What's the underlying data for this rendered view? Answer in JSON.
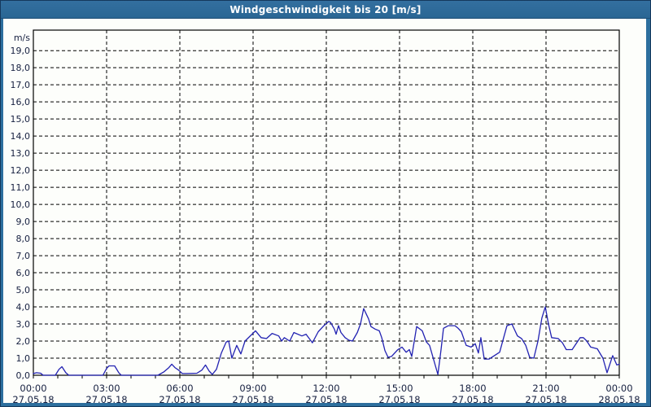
{
  "window": {
    "title": "Windgeschwindigkeit bis 20 [m/s]"
  },
  "colors": {
    "frame": "#2d6f9e",
    "frame_border": "#15385c",
    "chart_bg": "#fdfefb",
    "grid": "#000000",
    "axis": "#000000",
    "line": "#2222b2",
    "text": "#162040",
    "title_text": "#ffffff"
  },
  "chart_data": {
    "type": "line",
    "title": "Windgeschwindigkeit bis 20 [m/s]",
    "ylabel": "m/s",
    "xlabel": "",
    "ylim": [
      0,
      20.2
    ],
    "xlim_hours": [
      0,
      24
    ],
    "grid": "dashed",
    "legend": "none",
    "minor_x_tick_every_hours": 1,
    "y_ticks": [
      {
        "v": 0,
        "label": "0,0"
      },
      {
        "v": 1,
        "label": "1,0"
      },
      {
        "v": 2,
        "label": "2,0"
      },
      {
        "v": 3,
        "label": "3,0"
      },
      {
        "v": 4,
        "label": "4,0"
      },
      {
        "v": 5,
        "label": "5,0"
      },
      {
        "v": 6,
        "label": "6,0"
      },
      {
        "v": 7,
        "label": "7,0"
      },
      {
        "v": 8,
        "label": "8,0"
      },
      {
        "v": 9,
        "label": "9,0"
      },
      {
        "v": 10,
        "label": "10,0"
      },
      {
        "v": 11,
        "label": "11,0"
      },
      {
        "v": 12,
        "label": "12,0"
      },
      {
        "v": 13,
        "label": "13,0"
      },
      {
        "v": 14,
        "label": "14,0"
      },
      {
        "v": 15,
        "label": "15,0"
      },
      {
        "v": 16,
        "label": "16,0"
      },
      {
        "v": 17,
        "label": "17,0"
      },
      {
        "v": 18,
        "label": "18,0"
      },
      {
        "v": 19,
        "label": "19,0"
      }
    ],
    "x_ticks": [
      {
        "h": 0,
        "time": "00:00",
        "date": "27.05.18"
      },
      {
        "h": 3,
        "time": "03:00",
        "date": "27.05.18"
      },
      {
        "h": 6,
        "time": "06:00",
        "date": "27.05.18"
      },
      {
        "h": 9,
        "time": "09:00",
        "date": "27.05.18"
      },
      {
        "h": 12,
        "time": "12:00",
        "date": "27.05.18"
      },
      {
        "h": 15,
        "time": "15:00",
        "date": "27.05.18"
      },
      {
        "h": 18,
        "time": "18:00",
        "date": "27.05.18"
      },
      {
        "h": 21,
        "time": "21:00",
        "date": "27.05.18"
      },
      {
        "h": 24,
        "time": "00:00",
        "date": "28.05.18"
      }
    ],
    "series": [
      {
        "color": "#2222b2",
        "points": [
          [
            0,
            0.1
          ],
          [
            0.13,
            0.15
          ],
          [
            0.3,
            0.12
          ],
          [
            0.4,
            0
          ],
          [
            0.9,
            0
          ],
          [
            1.05,
            0.35
          ],
          [
            1.17,
            0.5
          ],
          [
            1.33,
            0.15
          ],
          [
            1.45,
            0
          ],
          [
            2.85,
            0
          ],
          [
            3,
            0.4
          ],
          [
            3.1,
            0.55
          ],
          [
            3.33,
            0.55
          ],
          [
            3.5,
            0.15
          ],
          [
            3.6,
            0
          ],
          [
            5.1,
            0
          ],
          [
            5.35,
            0.2
          ],
          [
            5.55,
            0.45
          ],
          [
            5.67,
            0.65
          ],
          [
            5.8,
            0.45
          ],
          [
            5.95,
            0.3
          ],
          [
            6.1,
            0.1
          ],
          [
            6.25,
            0.1
          ],
          [
            6.7,
            0.12
          ],
          [
            6.9,
            0.3
          ],
          [
            7.05,
            0.6
          ],
          [
            7.2,
            0.25
          ],
          [
            7.33,
            0.05
          ],
          [
            7.5,
            0.35
          ],
          [
            7.7,
            1.3
          ],
          [
            7.9,
            1.95
          ],
          [
            8,
            2
          ],
          [
            8.13,
            1
          ],
          [
            8.33,
            1.75
          ],
          [
            8.5,
            1.25
          ],
          [
            8.67,
            2
          ],
          [
            9.1,
            2.6
          ],
          [
            9.33,
            2.2
          ],
          [
            9.55,
            2.15
          ],
          [
            9.78,
            2.45
          ],
          [
            10.05,
            2.3
          ],
          [
            10.17,
            2
          ],
          [
            10.28,
            2.2
          ],
          [
            10.5,
            2
          ],
          [
            10.67,
            2.5
          ],
          [
            11,
            2.3
          ],
          [
            11.17,
            2.4
          ],
          [
            11.43,
            1.9
          ],
          [
            11.67,
            2.55
          ],
          [
            11.9,
            2.9
          ],
          [
            12.1,
            3.15
          ],
          [
            12.17,
            3.1
          ],
          [
            12.33,
            2.7
          ],
          [
            12.4,
            2.4
          ],
          [
            12.5,
            2.9
          ],
          [
            12.6,
            2.5
          ],
          [
            12.77,
            2.2
          ],
          [
            12.93,
            2.05
          ],
          [
            13.07,
            2
          ],
          [
            13.27,
            2.5
          ],
          [
            13.4,
            3
          ],
          [
            13.53,
            3.9
          ],
          [
            13.73,
            3.3
          ],
          [
            13.83,
            2.85
          ],
          [
            14,
            2.7
          ],
          [
            14.17,
            2.6
          ],
          [
            14.27,
            2.2
          ],
          [
            14.4,
            1.45
          ],
          [
            14.53,
            1.05
          ],
          [
            14.67,
            1.1
          ],
          [
            14.93,
            1.5
          ],
          [
            15.1,
            1.65
          ],
          [
            15.27,
            1.35
          ],
          [
            15.4,
            1.5
          ],
          [
            15.5,
            1.1
          ],
          [
            15.7,
            2.85
          ],
          [
            15.93,
            2.6
          ],
          [
            16.1,
            1.95
          ],
          [
            16.23,
            1.75
          ],
          [
            16.57,
            0.05
          ],
          [
            16.7,
            1.5
          ],
          [
            16.8,
            2.75
          ],
          [
            17,
            2.9
          ],
          [
            17.27,
            2.9
          ],
          [
            17.4,
            2.75
          ],
          [
            17.53,
            2.55
          ],
          [
            17.73,
            1.75
          ],
          [
            17.93,
            1.65
          ],
          [
            18.1,
            1.85
          ],
          [
            18.23,
            1.3
          ],
          [
            18.33,
            2.2
          ],
          [
            18.47,
            0.95
          ],
          [
            18.67,
            0.95
          ],
          [
            18.83,
            1.1
          ],
          [
            19.1,
            1.35
          ],
          [
            19.4,
            2.9
          ],
          [
            19.6,
            3
          ],
          [
            19.83,
            2.3
          ],
          [
            20,
            2.15
          ],
          [
            20.17,
            1.75
          ],
          [
            20.33,
            1.05
          ],
          [
            20.5,
            1
          ],
          [
            20.67,
            2
          ],
          [
            20.83,
            3.35
          ],
          [
            20.97,
            4
          ],
          [
            21.1,
            3
          ],
          [
            21.23,
            2.2
          ],
          [
            21.5,
            2.15
          ],
          [
            21.67,
            1.9
          ],
          [
            21.83,
            1.5
          ],
          [
            22.07,
            1.5
          ],
          [
            22.4,
            2.2
          ],
          [
            22.53,
            2.2
          ],
          [
            22.67,
            2
          ],
          [
            22.83,
            1.65
          ],
          [
            23.1,
            1.55
          ],
          [
            23.33,
            1
          ],
          [
            23.5,
            0.15
          ],
          [
            23.73,
            1.15
          ],
          [
            23.9,
            0.6
          ],
          [
            24,
            0.65
          ]
        ]
      }
    ]
  }
}
